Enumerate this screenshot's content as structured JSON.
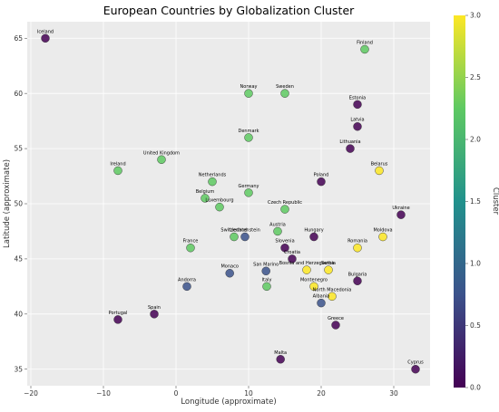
{
  "chart_data": {
    "type": "scatter",
    "title": "European Countries by Globalization Cluster",
    "xlabel": "Longitude (approximate)",
    "ylabel": "Latitude (approximate)",
    "xlim": [
      -20.5,
      35
    ],
    "ylim": [
      33.5,
      66.5
    ],
    "xticks": [
      -20,
      -10,
      0,
      10,
      20,
      30
    ],
    "yticks": [
      35,
      40,
      45,
      50,
      55,
      60,
      65
    ],
    "grid": true,
    "colorbar": {
      "label": "Cluster",
      "range": [
        0,
        3
      ],
      "ticks": [
        "0.0",
        "0.5",
        "1.0",
        "1.5",
        "2.0",
        "2.5",
        "3.0"
      ],
      "colormap": [
        "#440154",
        "#3b528b",
        "#21918c",
        "#5ec962",
        "#fde725"
      ]
    },
    "points": [
      {
        "label": "Iceland",
        "x": -18,
        "y": 65,
        "cluster": 0
      },
      {
        "label": "Finland",
        "x": 26,
        "y": 64,
        "cluster": 2
      },
      {
        "label": "Norway",
        "x": 10,
        "y": 60,
        "cluster": 2
      },
      {
        "label": "Sweden",
        "x": 15,
        "y": 60,
        "cluster": 2
      },
      {
        "label": "Estonia",
        "x": 25,
        "y": 59,
        "cluster": 0
      },
      {
        "label": "Latvia",
        "x": 25,
        "y": 57,
        "cluster": 0
      },
      {
        "label": "Denmark",
        "x": 10,
        "y": 56,
        "cluster": 2
      },
      {
        "label": "Lithuania",
        "x": 24,
        "y": 55,
        "cluster": 0
      },
      {
        "label": "United Kingdom",
        "x": -2,
        "y": 54,
        "cluster": 2
      },
      {
        "label": "Ireland",
        "x": -8,
        "y": 53,
        "cluster": 2
      },
      {
        "label": "Belarus",
        "x": 28,
        "y": 53,
        "cluster": 3
      },
      {
        "label": "Netherlands",
        "x": 5,
        "y": 52,
        "cluster": 2
      },
      {
        "label": "Poland",
        "x": 20,
        "y": 52,
        "cluster": 0
      },
      {
        "label": "Germany",
        "x": 10,
        "y": 51,
        "cluster": 2
      },
      {
        "label": "Belgium",
        "x": 4,
        "y": 50.5,
        "cluster": 2
      },
      {
        "label": "Luxembourg",
        "x": 6,
        "y": 49.7,
        "cluster": 2
      },
      {
        "label": "Czech Republic",
        "x": 15,
        "y": 49.5,
        "cluster": 2
      },
      {
        "label": "Ukraine",
        "x": 31,
        "y": 49,
        "cluster": 0
      },
      {
        "label": "Austria",
        "x": 14,
        "y": 47.5,
        "cluster": 2
      },
      {
        "label": "Switzerland",
        "x": 8,
        "y": 47,
        "cluster": 2
      },
      {
        "label": "Liechtenstein",
        "x": 9.5,
        "y": 47,
        "cluster": 1
      },
      {
        "label": "Hungary",
        "x": 19,
        "y": 47,
        "cluster": 0
      },
      {
        "label": "Moldova",
        "x": 28.5,
        "y": 47,
        "cluster": 3
      },
      {
        "label": "France",
        "x": 2,
        "y": 46,
        "cluster": 2
      },
      {
        "label": "Slovenia",
        "x": 15,
        "y": 46,
        "cluster": 0
      },
      {
        "label": "Romania",
        "x": 25,
        "y": 46,
        "cluster": 3
      },
      {
        "label": "Croatia",
        "x": 16,
        "y": 45,
        "cluster": 0
      },
      {
        "label": "Monaco",
        "x": 7.4,
        "y": 43.7,
        "cluster": 1
      },
      {
        "label": "San Marino",
        "x": 12.4,
        "y": 43.9,
        "cluster": 1
      },
      {
        "label": "Bosnia and Herzegovina",
        "x": 18,
        "y": 44,
        "cluster": 3
      },
      {
        "label": "Serbia",
        "x": 21,
        "y": 44,
        "cluster": 3
      },
      {
        "label": "Bulgaria",
        "x": 25,
        "y": 43,
        "cluster": 0
      },
      {
        "label": "Andorra",
        "x": 1.5,
        "y": 42.5,
        "cluster": 1
      },
      {
        "label": "Italy",
        "x": 12.5,
        "y": 42.5,
        "cluster": 2
      },
      {
        "label": "Montenegro",
        "x": 19,
        "y": 42.5,
        "cluster": 3
      },
      {
        "label": "North Macedonia",
        "x": 21.5,
        "y": 41.6,
        "cluster": 3
      },
      {
        "label": "Albania",
        "x": 20,
        "y": 41,
        "cluster": 1
      },
      {
        "label": "Spain",
        "x": -3,
        "y": 40,
        "cluster": 0
      },
      {
        "label": "Portugal",
        "x": -8,
        "y": 39.5,
        "cluster": 0
      },
      {
        "label": "Greece",
        "x": 22,
        "y": 39,
        "cluster": 0
      },
      {
        "label": "Malta",
        "x": 14.4,
        "y": 35.9,
        "cluster": 0
      },
      {
        "label": "Cyprus",
        "x": 33,
        "y": 35,
        "cluster": 0
      }
    ]
  }
}
